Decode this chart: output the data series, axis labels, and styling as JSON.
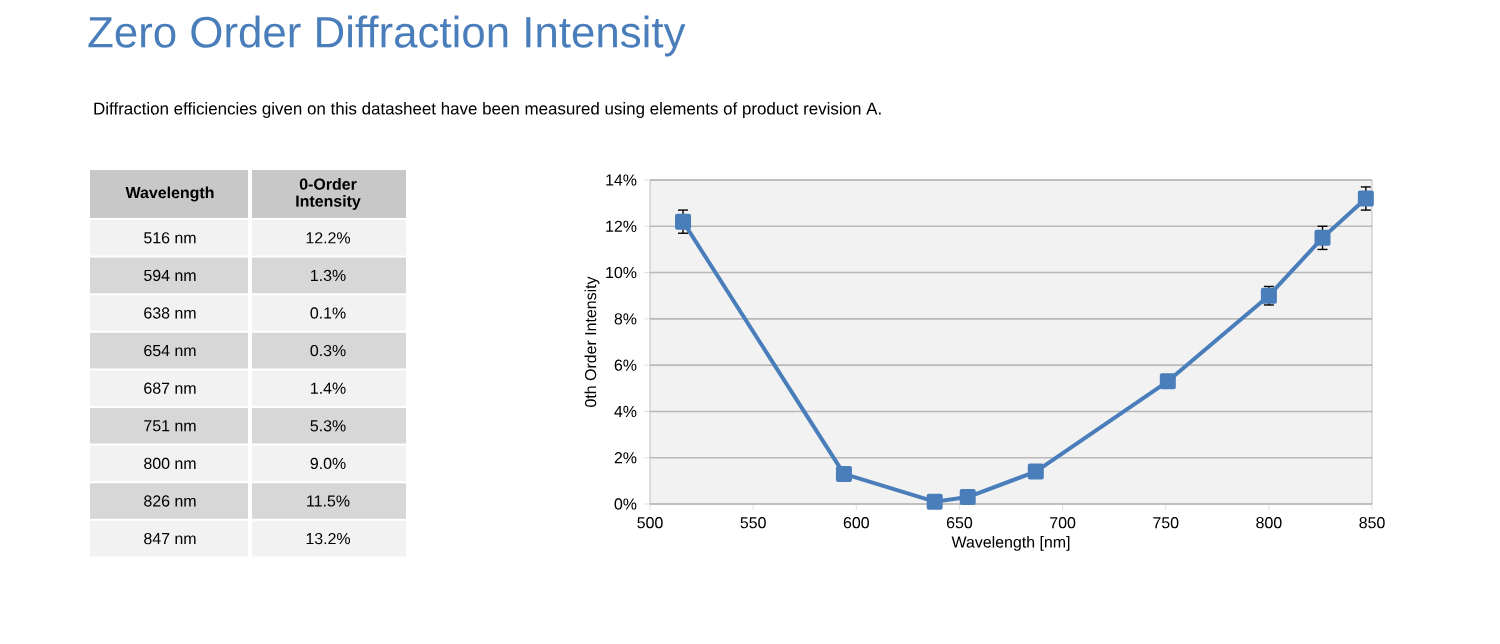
{
  "chart_data": {
    "type": "line",
    "title": "Zero Order Diffraction Intensity",
    "subtitle": "Diffraction efficiencies given on this datasheet have been measured using elements of product revision A.",
    "xlabel": "Wavelength [nm]",
    "ylabel": "0th Order Intensity",
    "x": [
      516,
      594,
      638,
      654,
      687,
      751,
      800,
      826,
      847
    ],
    "series": [
      {
        "color": "#4a7ebb",
        "values": [
          12.2,
          1.3,
          0.1,
          0.3,
          1.4,
          5.3,
          9.0,
          11.5,
          13.2
        ],
        "errors": [
          0.5,
          null,
          null,
          null,
          null,
          null,
          0.4,
          0.5,
          0.5
        ]
      }
    ],
    "annotations": [
      "Wavelength",
      "0-Order Intensity",
      "516 nm",
      "594 nm",
      "638 nm",
      "654 nm",
      "687 nm",
      "751 nm",
      "800 nm",
      "826 nm",
      "847 nm",
      "12.2%",
      "1.3%",
      "0.1%",
      "0.3%",
      "1.4%",
      "5.3%",
      "9.0%",
      "11.5%",
      "13.2%"
    ],
    "xlim": [
      500,
      850
    ],
    "xticks": [
      500,
      550,
      600,
      650,
      700,
      750,
      800,
      850
    ],
    "ylim": [
      0,
      14
    ],
    "yticks": [
      {
        "value": 0,
        "label": "0%"
      },
      {
        "value": 2,
        "label": "2%"
      },
      {
        "value": 4,
        "label": "4%"
      },
      {
        "value": 6,
        "label": "6%"
      },
      {
        "value": 8,
        "label": "8%"
      },
      {
        "value": 10,
        "label": "10%"
      },
      {
        "value": 12,
        "label": "12%"
      },
      {
        "value": 14,
        "label": "14%"
      }
    ],
    "grid": "y",
    "marker": "square",
    "line_style": "solid"
  }
}
